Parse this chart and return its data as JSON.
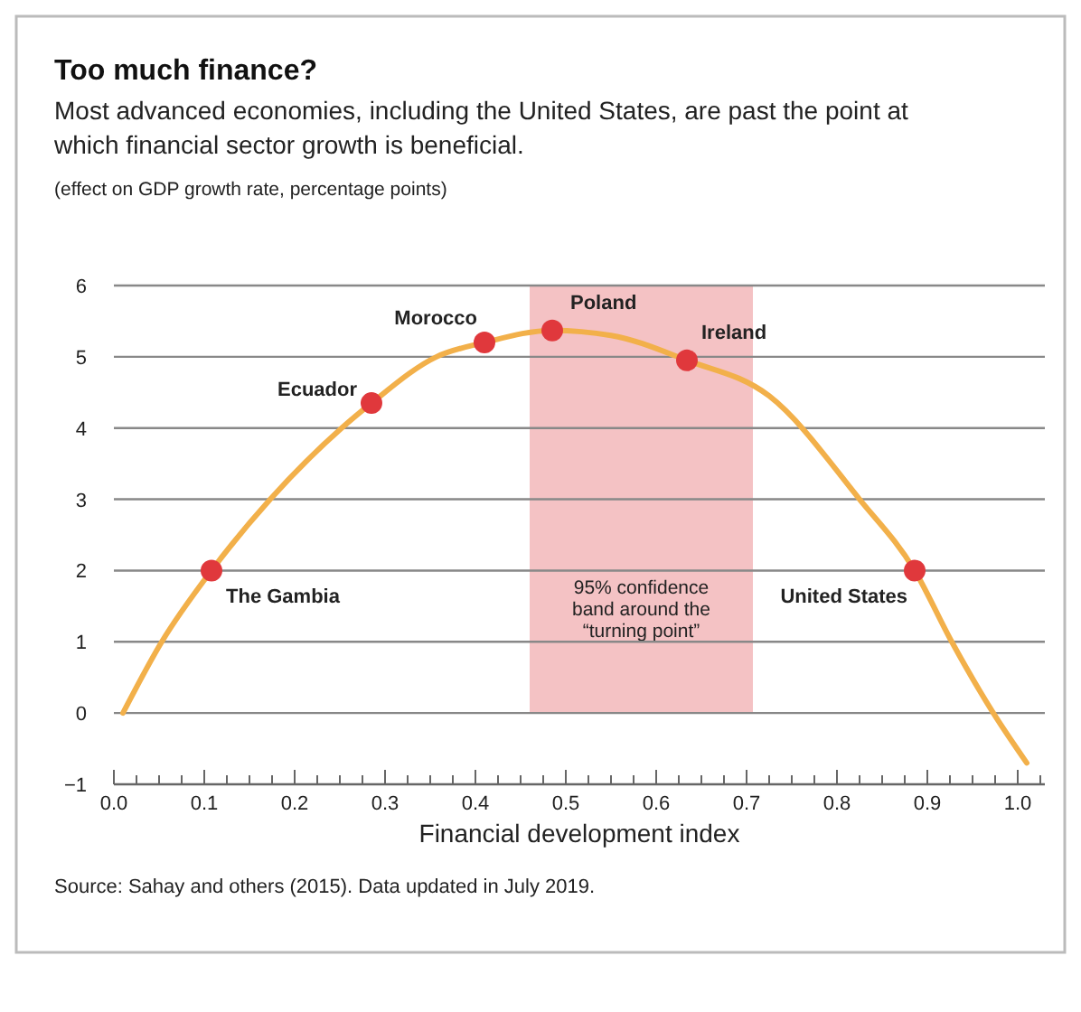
{
  "chart_data": {
    "type": "line",
    "title": "Too much finance?",
    "subtitle": "Most advanced economies, including the United States, are past the point at which financial sector growth is beneficial.",
    "ylabel": "(effect on GDP growth rate, percentage points)",
    "xlabel": "Financial development index",
    "xlim": [
      0,
      1.03
    ],
    "ylim": [
      -1,
      6
    ],
    "xticks": [
      {
        "value": 0,
        "label": "0.0"
      },
      {
        "value": 0.025,
        "label": null
      },
      {
        "value": 0.05,
        "label": null
      },
      {
        "value": 0.075,
        "label": null
      },
      {
        "value": 0.1,
        "label": "0.1"
      },
      {
        "value": 0.125,
        "label": null
      },
      {
        "value": 0.15,
        "label": null
      },
      {
        "value": 0.175,
        "label": null
      },
      {
        "value": 0.2,
        "label": "0.2"
      },
      {
        "value": 0.225,
        "label": null
      },
      {
        "value": 0.25,
        "label": null
      },
      {
        "value": 0.275,
        "label": null
      },
      {
        "value": 0.3,
        "label": "0.3"
      },
      {
        "value": 0.325,
        "label": null
      },
      {
        "value": 0.35,
        "label": null
      },
      {
        "value": 0.375,
        "label": null
      },
      {
        "value": 0.4,
        "label": "0.4"
      },
      {
        "value": 0.425,
        "label": null
      },
      {
        "value": 0.45,
        "label": null
      },
      {
        "value": 0.475,
        "label": null
      },
      {
        "value": 0.5,
        "label": "0.5"
      },
      {
        "value": 0.525,
        "label": null
      },
      {
        "value": 0.55,
        "label": null
      },
      {
        "value": 0.575,
        "label": null
      },
      {
        "value": 0.6,
        "label": "0.6"
      },
      {
        "value": 0.625,
        "label": null
      },
      {
        "value": 0.65,
        "label": null
      },
      {
        "value": 0.675,
        "label": null
      },
      {
        "value": 0.7,
        "label": "0.7"
      },
      {
        "value": 0.725,
        "label": null
      },
      {
        "value": 0.75,
        "label": null
      },
      {
        "value": 0.775,
        "label": null
      },
      {
        "value": 0.8,
        "label": "0.8"
      },
      {
        "value": 0.825,
        "label": null
      },
      {
        "value": 0.85,
        "label": null
      },
      {
        "value": 0.875,
        "label": null
      },
      {
        "value": 0.9,
        "label": "0.9"
      },
      {
        "value": 0.925,
        "label": null
      },
      {
        "value": 0.95,
        "label": null
      },
      {
        "value": 0.975,
        "label": null
      },
      {
        "value": 1,
        "label": "1.0"
      },
      {
        "value": 1.025,
        "label": null
      }
    ],
    "yticks": [
      {
        "value": -1,
        "label": "−1"
      },
      0,
      1,
      2,
      3,
      4,
      5,
      6
    ],
    "grid": "y",
    "series": [
      {
        "type": "line",
        "color": "#f2b04a",
        "x": [
          0.01,
          0.053,
          0.108,
          0.173,
          0.252,
          0.285,
          0.357,
          0.41,
          0.485,
          0.55,
          0.634,
          0.725,
          0.825,
          0.886,
          0.927,
          0.973,
          1.01
        ],
        "values": [
          0,
          1,
          2,
          3,
          4,
          4.35,
          5,
          5.2,
          5.37,
          5.3,
          4.95,
          4.45,
          3,
          2,
          1,
          0,
          -0.7
        ]
      },
      {
        "type": "scatter",
        "color": "#e0383c",
        "marker": "circle",
        "x": [
          0.108,
          0.285,
          0.41,
          0.485,
          0.634,
          0.886
        ],
        "values": [
          2,
          4.35,
          5.2,
          5.37,
          4.95,
          2
        ]
      }
    ],
    "bands": [
      {
        "axis": "x",
        "from": 0.46,
        "to": 0.707,
        "color": "#f4c2c4",
        "label": "95% confidence band around the “turning point”"
      }
    ],
    "annotations": [
      {
        "text": "The Gambia",
        "x": 0.108,
        "y": 2
      },
      {
        "text": "Ecuador",
        "x": 0.285,
        "y": 4.35
      },
      {
        "text": "Morocco",
        "x": 0.41,
        "y": 5.2
      },
      {
        "text": "Poland",
        "x": 0.485,
        "y": 5.37
      },
      {
        "text": "Ireland",
        "x": 0.634,
        "y": 4.95
      },
      {
        "text": "United States",
        "x": 0.886,
        "y": 2
      },
      "Source: Sahay and others (2015). Data updated in July 2019."
    ]
  }
}
